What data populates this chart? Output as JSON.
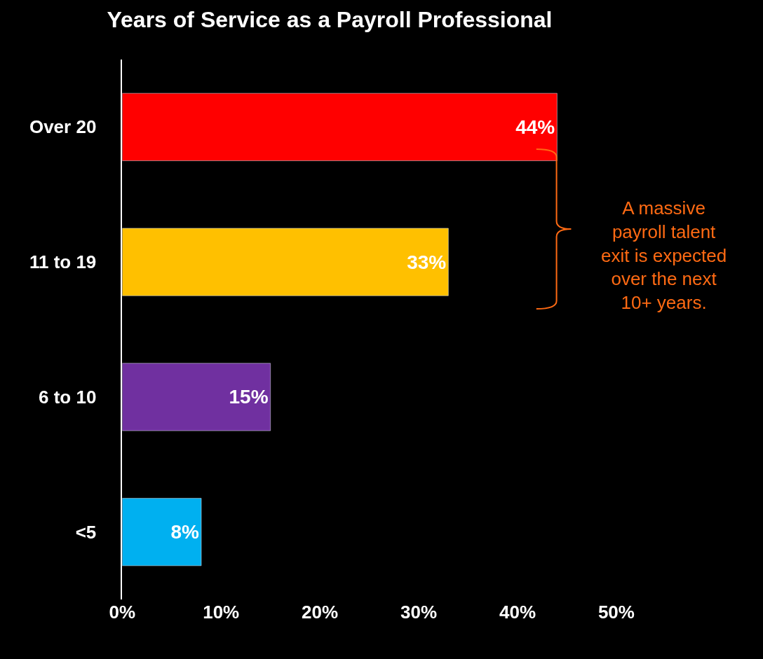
{
  "chart_data": {
    "type": "bar",
    "orientation": "horizontal",
    "title": "Years of Service as a Payroll Professional",
    "categories": [
      "Over 20",
      "11 to 19",
      "6 to 10",
      "<5"
    ],
    "values": [
      44,
      33,
      15,
      8
    ],
    "colors": [
      "#ff0000",
      "#ffc000",
      "#7030a0",
      "#00b0f0"
    ],
    "value_labels": [
      "44%",
      "33%",
      "15%",
      "8%"
    ],
    "xlim": [
      0,
      50
    ],
    "xticks": [
      {
        "value": 0,
        "label": "0%"
      },
      {
        "value": 10,
        "label": "10%"
      },
      {
        "value": 20,
        "label": "20%"
      },
      {
        "value": 30,
        "label": "30%"
      },
      {
        "value": 40,
        "label": "40%"
      },
      {
        "value": 50,
        "label": "50%"
      }
    ],
    "grid": false,
    "legend": false,
    "annotations": [
      "A massive payroll talent exit is expected over the next 10+ years."
    ]
  }
}
